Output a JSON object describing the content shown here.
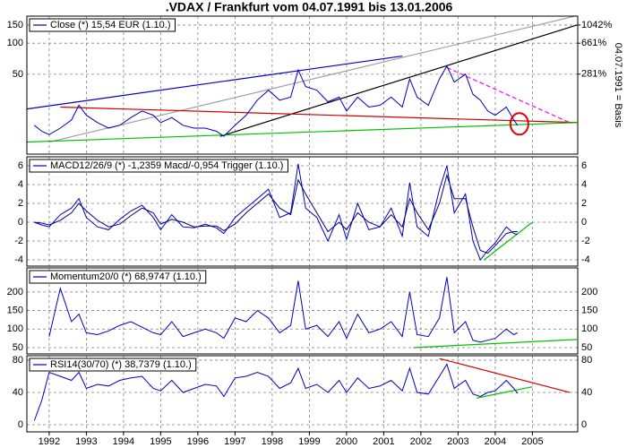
{
  "title": ".VDAX / Frankfurt vom 04.07.1991 bis 13.01.2006",
  "chart_data": [
    {
      "type": "line",
      "legend": "Close (*) 15,54 EUR (1.10.)",
      "log": true,
      "ylim": [
        8.4,
        183
      ],
      "yticks": [
        50,
        100,
        150
      ],
      "y2lim": [
        -36.1,
        1293
      ],
      "y2ticks": [
        {
          "value": 281,
          "label": "281%"
        },
        {
          "value": 661,
          "label": "661%"
        },
        {
          "value": 1042,
          "label": "1042%"
        }
      ],
      "y2label": "04.07.1991 = Basis",
      "x": [
        1991.6,
        1991.8,
        1992.0,
        1992.3,
        1992.6,
        1992.8,
        1993.0,
        1993.3,
        1993.6,
        1993.9,
        1994.2,
        1994.5,
        1994.8,
        1995.0,
        1995.3,
        1995.6,
        1995.9,
        1996.2,
        1996.5,
        1996.7,
        1997.0,
        1997.3,
        1997.6,
        1997.9,
        1998.2,
        1998.5,
        1998.7,
        1998.9,
        1999.2,
        1999.5,
        1999.8,
        2000.0,
        2000.3,
        2000.6,
        2000.9,
        2001.2,
        2001.5,
        2001.7,
        2001.9,
        2002.2,
        2002.5,
        2002.7,
        2002.9,
        2003.2,
        2003.4,
        2003.6,
        2003.8,
        2004.0,
        2004.3,
        2004.5,
        2004.6
      ],
      "series": [
        {
          "color": "#0000c0",
          "values": [
            16,
            14,
            13,
            15,
            18,
            25,
            20,
            17,
            15,
            16,
            19,
            22,
            20,
            17,
            19,
            16,
            15,
            15,
            14,
            12.5,
            16,
            20,
            28,
            35,
            28,
            30,
            55,
            38,
            35,
            27,
            30,
            22,
            30,
            24,
            25,
            30,
            24,
            45,
            30,
            25,
            45,
            60,
            42,
            50,
            32,
            28,
            22,
            20,
            24,
            18,
            16
          ]
        }
      ],
      "trendlines": [
        {
          "color": "#a0a0a0",
          "x": [
            1992.0,
            2006.2
          ],
          "y": [
            11,
            185
          ]
        },
        {
          "color": "#0000c0",
          "x": [
            1991.4,
            2001.5
          ],
          "y": [
            23,
            75
          ]
        },
        {
          "color": "#000000",
          "x": [
            1996.6,
            2006.2
          ],
          "y": [
            12.5,
            150
          ]
        },
        {
          "color": "#d00000",
          "x": [
            1992.3,
            2006.2
          ],
          "y": [
            24,
            17
          ]
        },
        {
          "color": "#00c000",
          "x": [
            1991.4,
            2006.2
          ],
          "y": [
            11,
            17
          ]
        },
        {
          "color": "#ff00ff",
          "x": [
            2002.7,
            2006.0
          ],
          "y": [
            58,
            17
          ],
          "dash": true
        }
      ],
      "highlight": {
        "color": "#e00000",
        "x": 2004.65,
        "y": 16.5
      }
    },
    {
      "type": "line",
      "legend": "MACD12/26/9 (*) -1,2359 Macd/-0,954 Trigger (1.10.)",
      "ylim": [
        -4.67,
        6.95
      ],
      "yticks": [
        -4,
        -2,
        0,
        2,
        4,
        6
      ],
      "x": [
        1991.6,
        1991.8,
        1992.0,
        1992.3,
        1992.6,
        1992.8,
        1993.0,
        1993.3,
        1993.6,
        1993.9,
        1994.2,
        1994.5,
        1994.8,
        1995.0,
        1995.3,
        1995.6,
        1995.9,
        1996.2,
        1996.5,
        1996.7,
        1997.0,
        1997.3,
        1997.6,
        1997.9,
        1998.2,
        1998.5,
        1998.7,
        1998.9,
        1999.2,
        1999.5,
        1999.8,
        2000.0,
        2000.3,
        2000.6,
        2000.9,
        2001.2,
        2001.5,
        2001.7,
        2001.9,
        2002.2,
        2002.5,
        2002.7,
        2002.9,
        2003.2,
        2003.4,
        2003.6,
        2003.8,
        2004.0,
        2004.3,
        2004.5,
        2004.6
      ],
      "series": [
        {
          "color": "#0000c0",
          "values": [
            0,
            -0.3,
            -0.5,
            0.8,
            1.5,
            2.5,
            0.5,
            -0.5,
            -0.8,
            0.3,
            1.2,
            1.8,
            0.5,
            -0.8,
            0.8,
            -0.5,
            -0.6,
            -0.2,
            -0.6,
            -1.2,
            0.5,
            1.5,
            2.5,
            3.5,
            0.5,
            1.0,
            6.2,
            1.5,
            0.5,
            -2,
            0.8,
            -1.8,
            2,
            -0.8,
            -0.5,
            1.5,
            -1.5,
            4.2,
            -0.5,
            -1.5,
            3.5,
            6,
            1,
            3,
            -2,
            -4,
            -3,
            -2.2,
            -0.5,
            -1.2,
            -1.3
          ]
        },
        {
          "color": "#000080",
          "values": [
            0,
            -0.1,
            -0.3,
            0.2,
            1.0,
            2.0,
            1.2,
            0.2,
            -0.5,
            -0.2,
            0.7,
            1.5,
            1.0,
            -0.2,
            0.3,
            0,
            -0.5,
            -0.4,
            -0.4,
            -0.9,
            -0.2,
            1.0,
            2.0,
            3.0,
            1.5,
            0.8,
            4.5,
            3.0,
            1.0,
            -1.0,
            0,
            -0.8,
            1,
            0,
            -0.5,
            0.8,
            -0.5,
            2.5,
            1.0,
            -0.8,
            2,
            5,
            2.5,
            2.5,
            -0.5,
            -3,
            -3.3,
            -2.5,
            -1.2,
            -1.0,
            -1.0
          ]
        }
      ],
      "trendlines": [
        {
          "color": "#00c000",
          "x": [
            2003.7,
            2005.0
          ],
          "y": [
            -4,
            0
          ]
        }
      ]
    },
    {
      "type": "line",
      "legend": "Momentum20/0 (*) 68,9747 (1.10.)",
      "ylim": [
        33,
        265
      ],
      "yticks": [
        50,
        100,
        150,
        200
      ],
      "x": [
        1991.6,
        1991.8,
        1992.0,
        1992.3,
        1992.6,
        1992.8,
        1993.0,
        1993.3,
        1993.6,
        1993.9,
        1994.2,
        1994.5,
        1994.8,
        1995.0,
        1995.3,
        1995.6,
        1995.9,
        1996.2,
        1996.5,
        1996.7,
        1997.0,
        1997.3,
        1997.6,
        1997.9,
        1998.2,
        1998.5,
        1998.7,
        1998.9,
        1999.2,
        1999.5,
        1999.8,
        2000.0,
        2000.3,
        2000.6,
        2000.9,
        2001.2,
        2001.5,
        2001.7,
        2001.9,
        2002.2,
        2002.5,
        2002.7,
        2002.9,
        2003.2,
        2003.4,
        2003.6,
        2003.8,
        2004.0,
        2004.3,
        2004.5,
        2004.6
      ],
      "series": [
        {
          "color": "#0000c0",
          "values": [
            null,
            null,
            80,
            210,
            120,
            140,
            90,
            85,
            95,
            110,
            120,
            105,
            90,
            85,
            120,
            80,
            90,
            100,
            90,
            75,
            130,
            120,
            150,
            130,
            90,
            110,
            230,
            100,
            110,
            80,
            120,
            75,
            140,
            90,
            100,
            120,
            80,
            200,
            85,
            80,
            130,
            240,
            90,
            120,
            70,
            65,
            70,
            75,
            100,
            85,
            90
          ]
        }
      ],
      "trendlines": [
        {
          "color": "#00c000",
          "x": [
            2001.8,
            2006.2
          ],
          "y": [
            50,
            72
          ]
        }
      ]
    },
    {
      "type": "line",
      "legend": "RSI14(30/70) (*) 38,7379 (1.10.)",
      "ylim": [
        -8.9,
        85.5
      ],
      "yticks": [
        0,
        40,
        80
      ],
      "xlim": [
        1991.4,
        2006.22
      ],
      "xticks": [
        1992,
        1993,
        1994,
        1995,
        1996,
        1997,
        1998,
        1999,
        2000,
        2001,
        2002,
        2003,
        2004,
        2005
      ],
      "x": [
        1991.6,
        1991.8,
        1992.0,
        1992.3,
        1992.6,
        1992.8,
        1993.0,
        1993.3,
        1993.6,
        1993.9,
        1994.2,
        1994.5,
        1994.8,
        1995.0,
        1995.3,
        1995.6,
        1995.9,
        1996.2,
        1996.5,
        1996.7,
        1997.0,
        1997.3,
        1997.6,
        1997.9,
        1998.2,
        1998.5,
        1998.7,
        1998.9,
        1999.2,
        1999.5,
        1999.8,
        2000.0,
        2000.3,
        2000.6,
        2000.9,
        2001.2,
        2001.5,
        2001.7,
        2001.9,
        2002.2,
        2002.5,
        2002.7,
        2002.9,
        2003.2,
        2003.4,
        2003.6,
        2003.8,
        2004.0,
        2004.3,
        2004.5,
        2004.6
      ],
      "series": [
        {
          "color": "#0000c0",
          "values": [
            5,
            30,
            65,
            60,
            55,
            65,
            45,
            50,
            48,
            55,
            58,
            60,
            45,
            42,
            55,
            40,
            45,
            50,
            48,
            35,
            58,
            60,
            65,
            60,
            45,
            52,
            70,
            45,
            50,
            40,
            55,
            40,
            58,
            45,
            48,
            55,
            42,
            70,
            40,
            38,
            60,
            75,
            45,
            55,
            38,
            35,
            40,
            42,
            55,
            45,
            39
          ]
        }
      ],
      "trendlines": [
        {
          "color": "#d00000",
          "x": [
            2002.5,
            2006.0
          ],
          "y": [
            82,
            40
          ]
        },
        {
          "color": "#00c000",
          "x": [
            2003.5,
            2005.0
          ],
          "y": [
            33,
            47
          ]
        }
      ]
    }
  ]
}
